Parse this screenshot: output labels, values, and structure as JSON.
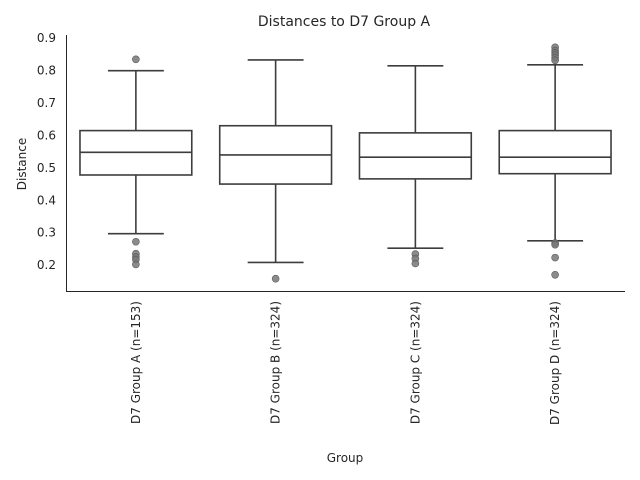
{
  "chart_data": {
    "type": "box",
    "title": "Distances to D7 Group A",
    "xlabel": "Group",
    "ylabel": "Distance",
    "ylim": [
      0.12,
      0.91
    ],
    "yticks": [
      0.2,
      0.3,
      0.4,
      0.5,
      0.6,
      0.7,
      0.8,
      0.9
    ],
    "ytick_labels": [
      "0.2",
      "0.3",
      "0.4",
      "0.5",
      "0.6",
      "0.7",
      "0.8",
      "0.9"
    ],
    "grid": false,
    "categories": [
      "D7 Group A (n=153)",
      "D7 Group B (n=324)",
      "D7 Group C (n=324)",
      "D7 Group D (n=324)"
    ],
    "boxes": [
      {
        "whisker_low": 0.297,
        "q1": 0.478,
        "median": 0.548,
        "q3": 0.615,
        "whisker_high": 0.8,
        "outliers": [
          0.835,
          0.272,
          0.235,
          0.225,
          0.217,
          0.202
        ]
      },
      {
        "whisker_low": 0.208,
        "q1": 0.45,
        "median": 0.54,
        "q3": 0.63,
        "whisker_high": 0.833,
        "outliers": [
          0.158
        ]
      },
      {
        "whisker_low": 0.252,
        "q1": 0.466,
        "median": 0.533,
        "q3": 0.608,
        "whisker_high": 0.815,
        "outliers": [
          0.234,
          0.22,
          0.205
        ]
      },
      {
        "whisker_low": 0.275,
        "q1": 0.482,
        "median": 0.533,
        "q3": 0.615,
        "whisker_high": 0.818,
        "outliers": [
          0.872,
          0.862,
          0.855,
          0.848,
          0.84,
          0.832,
          0.268,
          0.263,
          0.223,
          0.17
        ]
      }
    ],
    "colors": {
      "box_edge": "#3d3d3d",
      "outlier": "#777777",
      "text": "#262626",
      "axis": "#262626",
      "box_fill": "#ffffff"
    }
  }
}
